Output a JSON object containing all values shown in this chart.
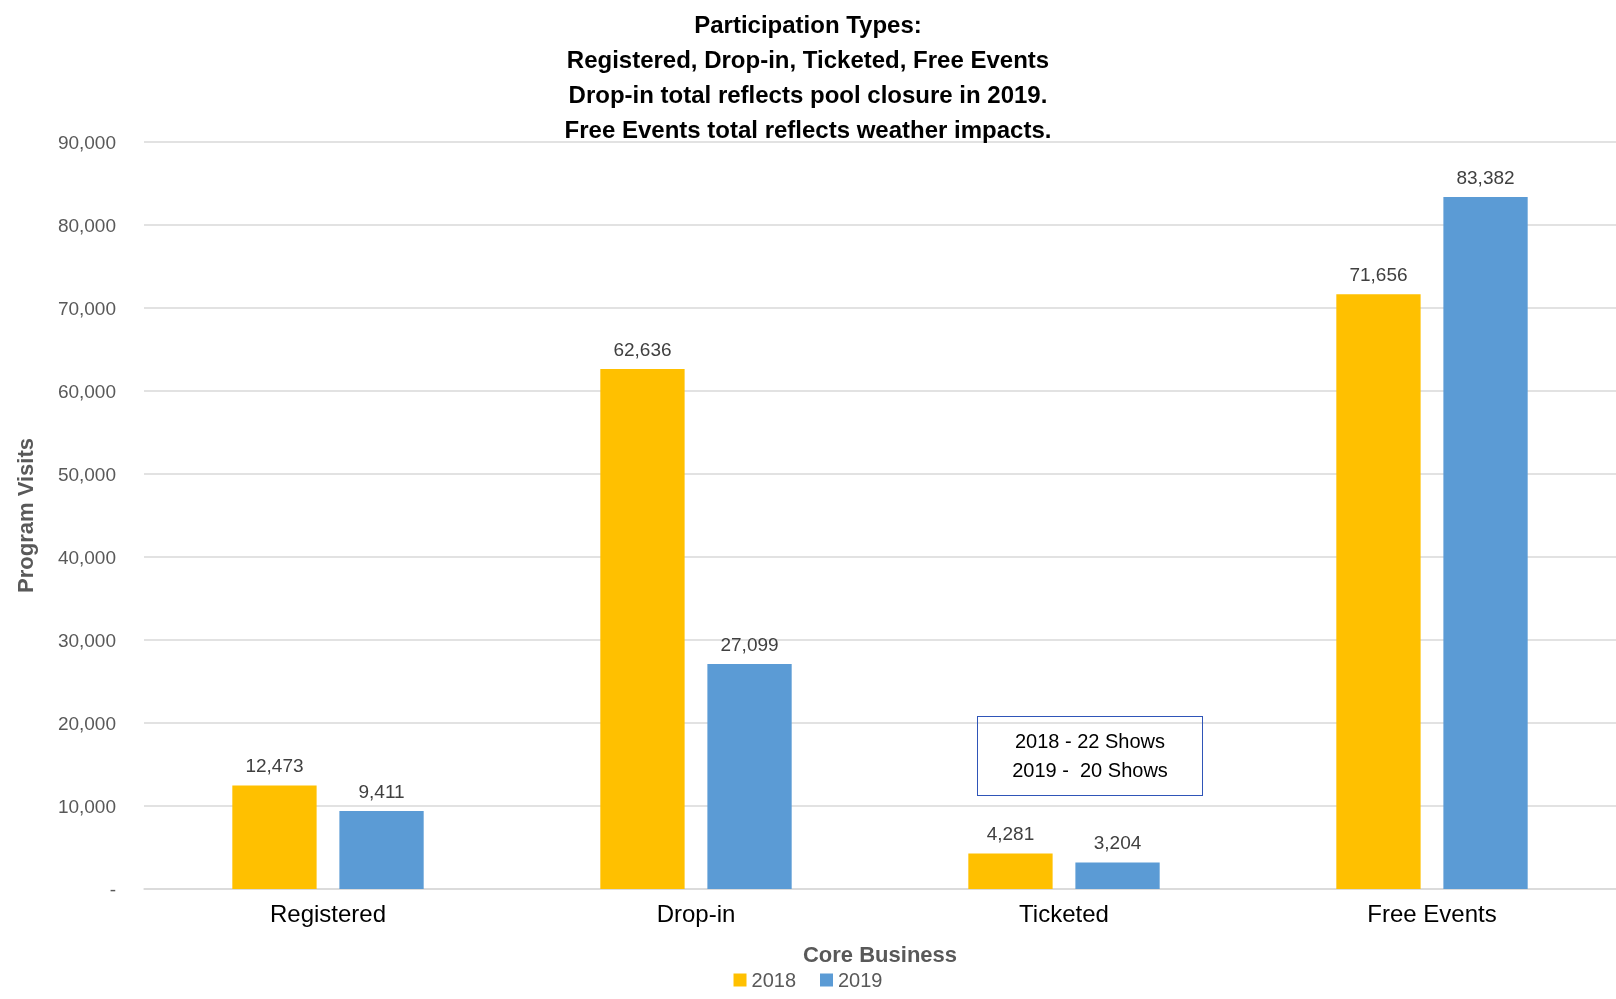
{
  "chart_data": {
    "type": "bar",
    "title": "Participation Types:\nRegistered, Drop-in, Ticketed, Free Events\nDrop-in total reflects pool closure in 2019.\nFree Events total reflects weather impacts.",
    "xlabel": "Core Business",
    "ylabel": "Program Visits",
    "categories": [
      "Registered",
      "Drop-in",
      "Ticketed",
      "Free Events"
    ],
    "series": [
      {
        "name": "2018",
        "color": "#ffc000",
        "values": [
          12473,
          62636,
          4281,
          71656
        ],
        "value_labels": [
          "12,473",
          "62,636",
          "4,281",
          "71,656"
        ]
      },
      {
        "name": "2019",
        "color": "#5b9bd5",
        "values": [
          9411,
          27099,
          3204,
          83382
        ],
        "value_labels": [
          "9,411",
          "27,099",
          "3,204",
          "83,382"
        ]
      }
    ],
    "ylim": [
      0,
      90000
    ],
    "yticks": [
      {
        "value": 0,
        "label": "-"
      },
      {
        "value": 10000,
        "label": "10,000"
      },
      {
        "value": 20000,
        "label": "20,000"
      },
      {
        "value": 30000,
        "label": "30,000"
      },
      {
        "value": 40000,
        "label": "40,000"
      },
      {
        "value": 50000,
        "label": "50,000"
      },
      {
        "value": 60000,
        "label": "60,000"
      },
      {
        "value": 70000,
        "label": "70,000"
      },
      {
        "value": 80000,
        "label": "80,000"
      },
      {
        "value": 90000,
        "label": "90,000"
      }
    ],
    "grid": "y",
    "legend": "bottom",
    "annotations": [
      "2018 - 22 Shows\n2019 -  20 Shows"
    ]
  }
}
